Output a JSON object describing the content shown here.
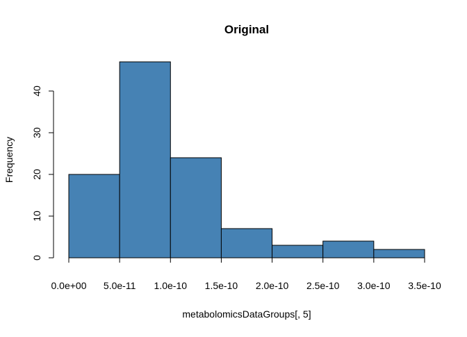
{
  "chart_data": {
    "type": "bar",
    "title": "Original",
    "xlabel": "metabolomicsDataGroups[, 5]",
    "ylabel": "Frequency",
    "bin_edges": [
      0,
      5e-11,
      1e-10,
      1.5e-10,
      2e-10,
      2.5e-10,
      3e-10,
      3.5e-10
    ],
    "values": [
      20,
      47,
      24,
      7,
      3,
      4,
      2
    ],
    "xlim": [
      0,
      3.5e-10
    ],
    "ylim": [
      0,
      47
    ],
    "x_ticks": [
      {
        "value": 0,
        "label": "0.0e+00"
      },
      {
        "value": 5e-11,
        "label": "5.0e-11"
      },
      {
        "value": 1e-10,
        "label": "1.0e-10"
      },
      {
        "value": 1.5e-10,
        "label": "1.5e-10"
      },
      {
        "value": 2e-10,
        "label": "2.0e-10"
      },
      {
        "value": 2.5e-10,
        "label": "2.5e-10"
      },
      {
        "value": 3e-10,
        "label": "3.0e-10"
      },
      {
        "value": 3.5e-10,
        "label": "3.5e-10"
      }
    ],
    "y_ticks": [
      {
        "value": 0,
        "label": "0"
      },
      {
        "value": 10,
        "label": "10"
      },
      {
        "value": 20,
        "label": "20"
      },
      {
        "value": 30,
        "label": "30"
      },
      {
        "value": 40,
        "label": "40"
      }
    ],
    "bar_color": "#4682B4",
    "edge_color": "#000000",
    "grid": false
  }
}
